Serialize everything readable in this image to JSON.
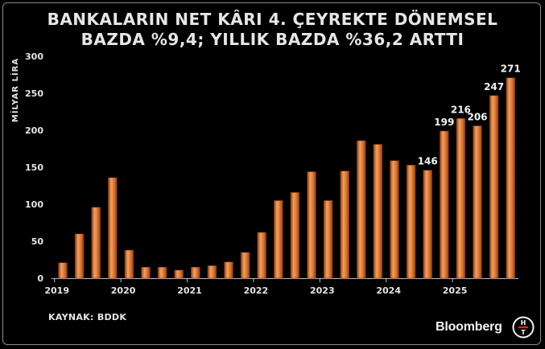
{
  "title_line1": "BANKALARIN NET KÂRI 4. ÇEYREKTE DÖNEMSEL",
  "title_line2": "BAZDA %9,4; YILLIK BAZDA %36,2 ARTTI",
  "source": "KAYNAK: BDDK",
  "brand": "Bloomberg",
  "logo_letters": "H T",
  "colors": {
    "bar": "#d9712a",
    "bar_light": "#f4a061",
    "bar_dark": "#8a3e10",
    "background": "#000000",
    "text": "#e6e6e6"
  },
  "chart_data": {
    "type": "bar",
    "ylabel": "MİLYAR LİRA",
    "ylim": [
      0,
      300
    ],
    "yticks": [
      0,
      50,
      100,
      150,
      200,
      250,
      300
    ],
    "xtick_labels": [
      "2019",
      "2020",
      "2021",
      "2022",
      "2023",
      "2024",
      "2025"
    ],
    "categories": [
      "2019Q1",
      "2019Q2",
      "2019Q3",
      "2019Q4",
      "2020Q1",
      "2020Q2",
      "2020Q3",
      "2020Q4",
      "2021Q1",
      "2021Q2",
      "2021Q3",
      "2021Q4",
      "2022Q1",
      "2022Q2",
      "2022Q3",
      "2022Q4",
      "2023Q1",
      "2023Q2",
      "2023Q3",
      "2023Q4",
      "2024Q1",
      "2024Q2",
      "2024Q3",
      "2024Q4",
      "2025Q1",
      "2025Q2",
      "2025Q3",
      "2025Q4"
    ],
    "values": [
      21,
      60,
      96,
      136,
      38,
      15,
      15,
      11,
      15,
      17,
      22,
      35,
      62,
      105,
      116,
      144,
      105,
      145,
      186,
      181,
      159,
      153,
      146,
      199,
      216,
      206,
      247,
      271
    ],
    "data_labels": [
      {
        "index": 22,
        "text": "146"
      },
      {
        "index": 23,
        "text": "199"
      },
      {
        "index": 24,
        "text": "216"
      },
      {
        "index": 25,
        "text": "206"
      },
      {
        "index": 26,
        "text": "247"
      },
      {
        "index": 27,
        "text": "271"
      }
    ],
    "grid": false,
    "legend": "none"
  }
}
